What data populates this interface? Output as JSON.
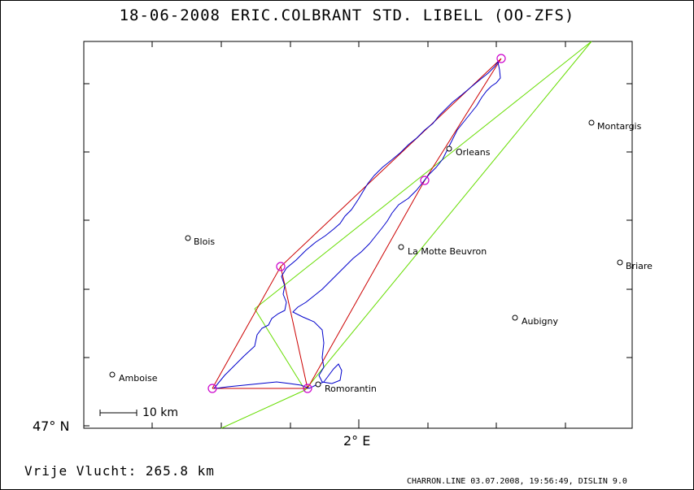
{
  "title": "18-06-2008   ERIC.COLBRANT   STD. LIBELL (OO-ZFS)",
  "axes": {
    "lat_label": "47° N",
    "lon_label": "2° E"
  },
  "cities": [
    {
      "name": "Montargis"
    },
    {
      "name": "Orleans"
    },
    {
      "name": "Blois"
    },
    {
      "name": "La Motte Beuvron"
    },
    {
      "name": "Briare"
    },
    {
      "name": "Aubigny"
    },
    {
      "name": "Amboise"
    },
    {
      "name": "Romorantin"
    }
  ],
  "scale": {
    "label": "10 km"
  },
  "distance": "Vrije Vlucht:  265.8 km",
  "footer": "CHARRON.LINE 03.07.2008, 19:56:49, DISLIN 9.0",
  "colors": {
    "track": "#0000cc",
    "task": "#cc0000",
    "turnpoint": "#cc00cc",
    "sector": "#66dd00"
  }
}
